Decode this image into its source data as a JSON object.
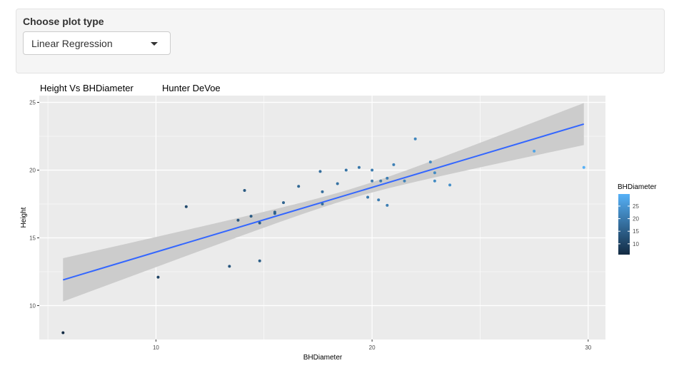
{
  "control": {
    "label": "Choose plot type",
    "selected": "Linear Regression"
  },
  "colors": {
    "panel_bg": "#ebebeb",
    "grid": "#ffffff",
    "fit_line": "#3366ff",
    "ribbon": "#cccccc",
    "color_low": "#132b43",
    "color_high": "#56b1f7"
  },
  "chart_data": {
    "type": "scatter",
    "title": "Height Vs BHDiameter",
    "subtitle": "Hunter DeVoe",
    "xlabel": "BHDiameter",
    "ylabel": "Height",
    "xlim": [
      4.6,
      30.8
    ],
    "ylim": [
      7.5,
      25.5
    ],
    "x_ticks": [
      10,
      20,
      30
    ],
    "y_ticks": [
      10,
      15,
      20,
      25
    ],
    "grid": true,
    "legend": {
      "title": "BHDiameter",
      "placement": "right",
      "ticks": [
        10,
        15,
        20,
        25
      ],
      "range": [
        5.7,
        29.8
      ]
    },
    "points": [
      {
        "x": 5.7,
        "y": 8.0
      },
      {
        "x": 10.1,
        "y": 12.1
      },
      {
        "x": 11.4,
        "y": 17.3
      },
      {
        "x": 13.4,
        "y": 12.9
      },
      {
        "x": 13.8,
        "y": 16.3
      },
      {
        "x": 14.1,
        "y": 18.5
      },
      {
        "x": 14.4,
        "y": 16.6
      },
      {
        "x": 14.8,
        "y": 13.3
      },
      {
        "x": 14.8,
        "y": 16.1
      },
      {
        "x": 15.5,
        "y": 16.8
      },
      {
        "x": 15.5,
        "y": 16.9
      },
      {
        "x": 15.9,
        "y": 17.6
      },
      {
        "x": 16.6,
        "y": 18.8
      },
      {
        "x": 17.6,
        "y": 19.9
      },
      {
        "x": 17.7,
        "y": 17.5
      },
      {
        "x": 17.7,
        "y": 18.4
      },
      {
        "x": 18.4,
        "y": 19.0
      },
      {
        "x": 18.8,
        "y": 20.0
      },
      {
        "x": 19.4,
        "y": 20.2
      },
      {
        "x": 19.8,
        "y": 18.0
      },
      {
        "x": 20.0,
        "y": 19.2
      },
      {
        "x": 20.0,
        "y": 20.0
      },
      {
        "x": 20.3,
        "y": 17.8
      },
      {
        "x": 20.4,
        "y": 19.2
      },
      {
        "x": 20.7,
        "y": 17.4
      },
      {
        "x": 20.7,
        "y": 19.4
      },
      {
        "x": 21.0,
        "y": 20.4
      },
      {
        "x": 21.5,
        "y": 19.2
      },
      {
        "x": 22.0,
        "y": 22.3
      },
      {
        "x": 22.7,
        "y": 20.6
      },
      {
        "x": 22.9,
        "y": 19.2
      },
      {
        "x": 22.9,
        "y": 19.8
      },
      {
        "x": 23.6,
        "y": 18.9
      },
      {
        "x": 27.5,
        "y": 21.4
      },
      {
        "x": 29.8,
        "y": 20.2
      }
    ],
    "fit": {
      "x": [
        5.7,
        29.8
      ],
      "y": [
        11.9,
        23.4
      ],
      "lower": [
        10.3,
        21.9
      ],
      "upper": [
        13.5,
        24.95
      ],
      "mid_x": 19.0,
      "mid_lower": [
        17.9,
        18.7
      ]
    }
  }
}
